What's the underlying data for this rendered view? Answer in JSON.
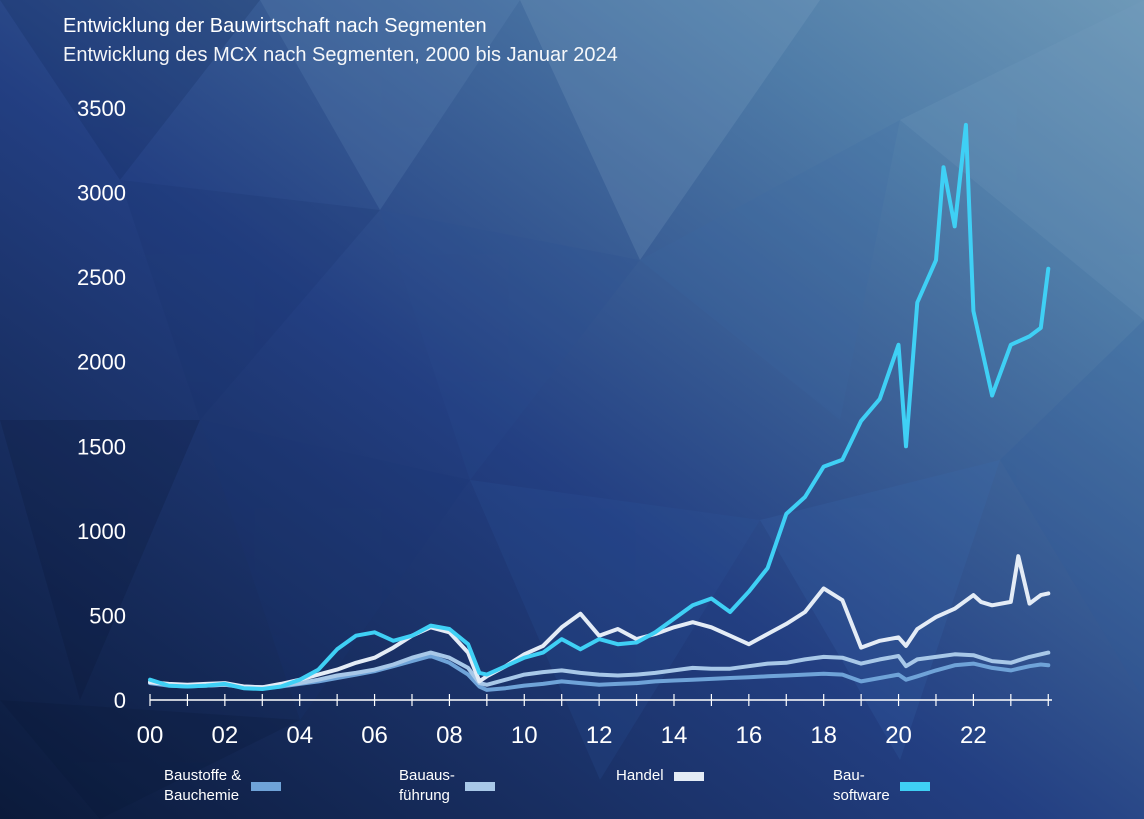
{
  "header": {
    "title": "Entwicklung der Bauwirtschaft nach Segmenten",
    "subtitle": "Entwicklung des MCX nach Segmenten, 2000 bis Januar 2024"
  },
  "legend": [
    {
      "label": "Baustoffe &\nBauchemie",
      "color": "#6fa3d8"
    },
    {
      "label": "Bauaus-\nführung",
      "color": "#a8c8e8"
    },
    {
      "label": "Handel",
      "color": "#e4ecf6"
    },
    {
      "label": "Bau-\nsoftware",
      "color": "#3fd0f5"
    }
  ],
  "chart_data": {
    "type": "line",
    "title": "Entwicklung der Bauwirtschaft nach Segmenten",
    "subtitle": "Entwicklung des MCX nach Segmenten, 2000 bis Januar 2024",
    "xlim": [
      0,
      24.1
    ],
    "ylim": [
      0,
      3500
    ],
    "x_ticks": [
      0,
      2,
      4,
      6,
      8,
      10,
      12,
      14,
      16,
      18,
      20,
      22
    ],
    "x_tick_labels": [
      "00",
      "02",
      "04",
      "06",
      "08",
      "10",
      "12",
      "14",
      "16",
      "18",
      "20",
      "22"
    ],
    "y_ticks": [
      0,
      500,
      1000,
      1500,
      2000,
      2500,
      3000,
      3500
    ],
    "y_tick_labels": [
      "0",
      "500",
      "1000",
      "1500",
      "2000",
      "2500",
      "3000",
      "3500"
    ],
    "grid": false,
    "legend_position": "bottom",
    "series": [
      {
        "name": "Baustoffe & Bauchemie",
        "color": "#6fa3d8",
        "points": [
          [
            0,
            100
          ],
          [
            0.5,
            85
          ],
          [
            1,
            80
          ],
          [
            1.5,
            85
          ],
          [
            2,
            90
          ],
          [
            2.5,
            75
          ],
          [
            3,
            70
          ],
          [
            3.5,
            80
          ],
          [
            4,
            95
          ],
          [
            4.5,
            110
          ],
          [
            5,
            130
          ],
          [
            5.5,
            150
          ],
          [
            6,
            170
          ],
          [
            6.5,
            200
          ],
          [
            7,
            230
          ],
          [
            7.5,
            260
          ],
          [
            8,
            220
          ],
          [
            8.5,
            150
          ],
          [
            8.8,
            80
          ],
          [
            9,
            60
          ],
          [
            9.5,
            70
          ],
          [
            10,
            85
          ],
          [
            10.5,
            95
          ],
          [
            11,
            110
          ],
          [
            11.5,
            100
          ],
          [
            12,
            90
          ],
          [
            12.5,
            95
          ],
          [
            13,
            100
          ],
          [
            13.5,
            110
          ],
          [
            14,
            115
          ],
          [
            14.5,
            120
          ],
          [
            15,
            125
          ],
          [
            15.5,
            130
          ],
          [
            16,
            135
          ],
          [
            16.5,
            140
          ],
          [
            17,
            145
          ],
          [
            17.5,
            150
          ],
          [
            18,
            155
          ],
          [
            18.5,
            150
          ],
          [
            19,
            110
          ],
          [
            19.5,
            130
          ],
          [
            20,
            150
          ],
          [
            20.2,
            120
          ],
          [
            20.5,
            140
          ],
          [
            21,
            175
          ],
          [
            21.5,
            205
          ],
          [
            22,
            215
          ],
          [
            22.5,
            190
          ],
          [
            23,
            175
          ],
          [
            23.5,
            200
          ],
          [
            23.8,
            210
          ],
          [
            24,
            205
          ]
        ]
      },
      {
        "name": "Bauausführung",
        "color": "#a8c8e8",
        "points": [
          [
            0,
            105
          ],
          [
            0.5,
            90
          ],
          [
            1,
            85
          ],
          [
            1.5,
            85
          ],
          [
            2,
            90
          ],
          [
            2.5,
            80
          ],
          [
            3,
            75
          ],
          [
            3.5,
            85
          ],
          [
            4,
            100
          ],
          [
            4.5,
            120
          ],
          [
            5,
            145
          ],
          [
            5.5,
            160
          ],
          [
            6,
            180
          ],
          [
            6.5,
            210
          ],
          [
            7,
            250
          ],
          [
            7.5,
            280
          ],
          [
            8,
            250
          ],
          [
            8.5,
            190
          ],
          [
            8.8,
            100
          ],
          [
            9,
            90
          ],
          [
            9.5,
            120
          ],
          [
            10,
            150
          ],
          [
            10.5,
            165
          ],
          [
            11,
            175
          ],
          [
            11.5,
            160
          ],
          [
            12,
            150
          ],
          [
            12.5,
            145
          ],
          [
            13,
            150
          ],
          [
            13.5,
            160
          ],
          [
            14,
            175
          ],
          [
            14.5,
            190
          ],
          [
            15,
            185
          ],
          [
            15.5,
            185
          ],
          [
            16,
            200
          ],
          [
            16.5,
            215
          ],
          [
            17,
            220
          ],
          [
            17.5,
            240
          ],
          [
            18,
            255
          ],
          [
            18.5,
            250
          ],
          [
            19,
            215
          ],
          [
            19.5,
            240
          ],
          [
            20,
            260
          ],
          [
            20.2,
            200
          ],
          [
            20.5,
            240
          ],
          [
            21,
            255
          ],
          [
            21.5,
            270
          ],
          [
            22,
            265
          ],
          [
            22.5,
            230
          ],
          [
            23,
            220
          ],
          [
            23.5,
            255
          ],
          [
            23.8,
            270
          ],
          [
            24,
            280
          ]
        ]
      },
      {
        "name": "Handel",
        "color": "#e4ecf6",
        "points": [
          [
            0,
            105
          ],
          [
            0.5,
            95
          ],
          [
            1,
            90
          ],
          [
            1.5,
            95
          ],
          [
            2,
            100
          ],
          [
            2.5,
            80
          ],
          [
            3,
            75
          ],
          [
            3.5,
            95
          ],
          [
            4,
            120
          ],
          [
            4.5,
            150
          ],
          [
            5,
            180
          ],
          [
            5.5,
            220
          ],
          [
            6,
            250
          ],
          [
            6.5,
            310
          ],
          [
            7,
            380
          ],
          [
            7.5,
            430
          ],
          [
            8,
            400
          ],
          [
            8.5,
            280
          ],
          [
            8.8,
            110
          ],
          [
            9,
            140
          ],
          [
            9.5,
            200
          ],
          [
            10,
            270
          ],
          [
            10.5,
            320
          ],
          [
            11,
            430
          ],
          [
            11.5,
            510
          ],
          [
            12,
            380
          ],
          [
            12.5,
            420
          ],
          [
            13,
            360
          ],
          [
            13.5,
            390
          ],
          [
            14,
            430
          ],
          [
            14.5,
            460
          ],
          [
            15,
            430
          ],
          [
            15.5,
            380
          ],
          [
            16,
            330
          ],
          [
            16.5,
            390
          ],
          [
            17,
            450
          ],
          [
            17.5,
            520
          ],
          [
            18,
            660
          ],
          [
            18.5,
            590
          ],
          [
            19,
            310
          ],
          [
            19.5,
            350
          ],
          [
            20,
            370
          ],
          [
            20.2,
            320
          ],
          [
            20.5,
            420
          ],
          [
            21,
            490
          ],
          [
            21.5,
            540
          ],
          [
            22,
            620
          ],
          [
            22.2,
            580
          ],
          [
            22.5,
            560
          ],
          [
            23,
            580
          ],
          [
            23.2,
            850
          ],
          [
            23.5,
            570
          ],
          [
            23.8,
            620
          ],
          [
            24,
            630
          ]
        ]
      },
      {
        "name": "Bausoftware",
        "color": "#3fd0f5",
        "points": [
          [
            0,
            120
          ],
          [
            0.5,
            85
          ],
          [
            1,
            80
          ],
          [
            1.5,
            85
          ],
          [
            2,
            95
          ],
          [
            2.5,
            70
          ],
          [
            3,
            65
          ],
          [
            3.5,
            80
          ],
          [
            4,
            120
          ],
          [
            4.5,
            180
          ],
          [
            5,
            300
          ],
          [
            5.5,
            380
          ],
          [
            6,
            400
          ],
          [
            6.5,
            350
          ],
          [
            7,
            380
          ],
          [
            7.5,
            440
          ],
          [
            8,
            420
          ],
          [
            8.5,
            330
          ],
          [
            8.8,
            160
          ],
          [
            9,
            150
          ],
          [
            9.5,
            200
          ],
          [
            10,
            250
          ],
          [
            10.5,
            280
          ],
          [
            11,
            360
          ],
          [
            11.5,
            300
          ],
          [
            12,
            360
          ],
          [
            12.5,
            330
          ],
          [
            13,
            340
          ],
          [
            13.5,
            400
          ],
          [
            14,
            480
          ],
          [
            14.5,
            560
          ],
          [
            15,
            600
          ],
          [
            15.5,
            520
          ],
          [
            16,
            640
          ],
          [
            16.5,
            780
          ],
          [
            17,
            1100
          ],
          [
            17.5,
            1200
          ],
          [
            18,
            1380
          ],
          [
            18.5,
            1420
          ],
          [
            19,
            1650
          ],
          [
            19.5,
            1780
          ],
          [
            20,
            2100
          ],
          [
            20.2,
            1500
          ],
          [
            20.5,
            2350
          ],
          [
            21,
            2600
          ],
          [
            21.2,
            3150
          ],
          [
            21.5,
            2800
          ],
          [
            21.8,
            3400
          ],
          [
            22,
            2300
          ],
          [
            22.5,
            1800
          ],
          [
            23,
            2100
          ],
          [
            23.5,
            2150
          ],
          [
            23.8,
            2200
          ],
          [
            24,
            2550
          ]
        ]
      }
    ]
  }
}
